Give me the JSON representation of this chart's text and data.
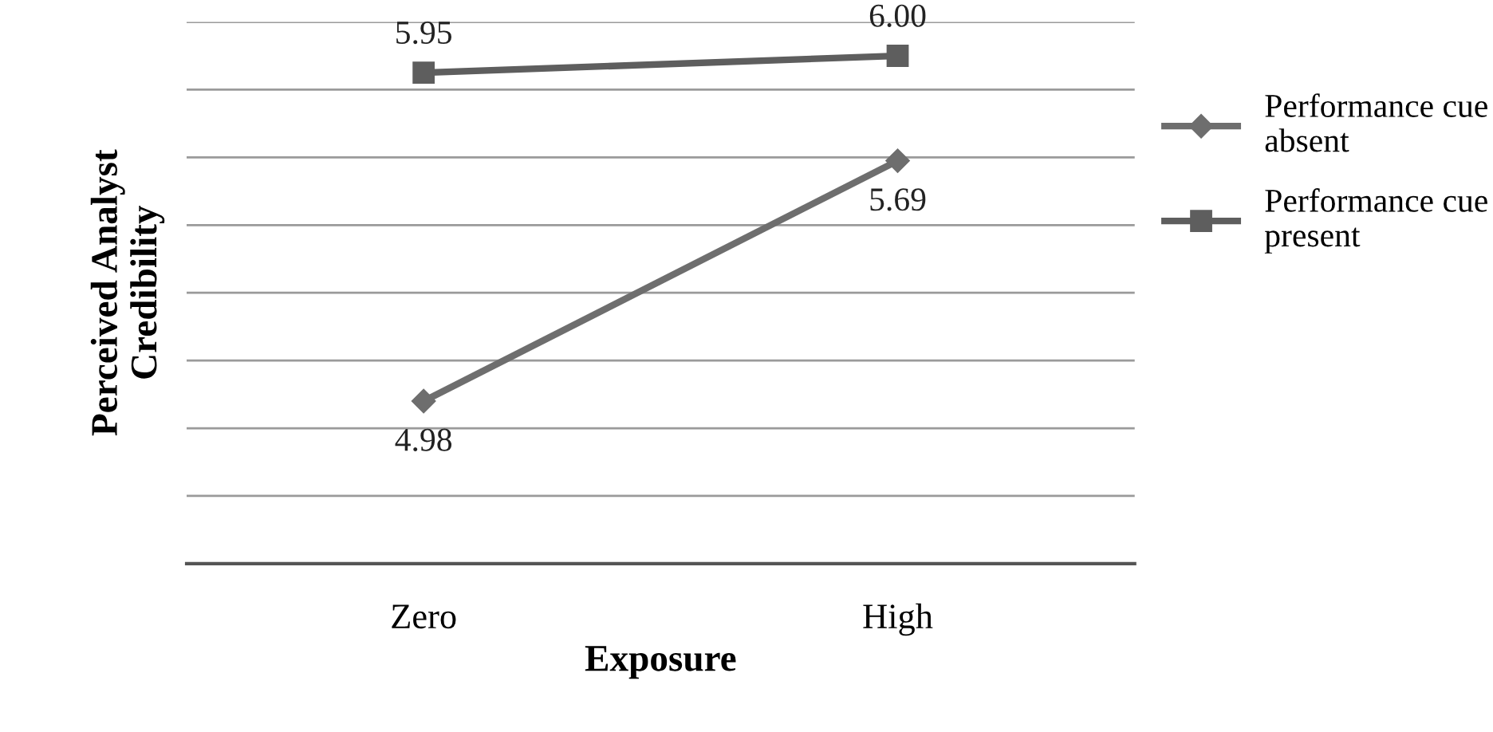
{
  "chart_data": {
    "type": "line",
    "xlabel": "Exposure",
    "ylabel": "Perceived Analyst\nCredibility",
    "categories": [
      "Zero",
      "High"
    ],
    "series": [
      {
        "name": "Performance cue absent",
        "color": "#6e6e6e",
        "marker": "diamond",
        "values": [
          4.98,
          5.69
        ],
        "value_labels": [
          "4.98",
          "5.69"
        ]
      },
      {
        "name": "Performance cue present",
        "color": "#5e5e5e",
        "marker": "square",
        "values": [
          5.95,
          6.0
        ],
        "value_labels": [
          "5.95",
          "6.00"
        ]
      }
    ],
    "ylim": [
      4.5,
      6.1
    ],
    "yticks": [
      {
        "value": 4.5,
        "label": null
      },
      {
        "value": 4.7,
        "label": null
      },
      {
        "value": 4.9,
        "label": null
      },
      {
        "value": 5.1,
        "label": null
      },
      {
        "value": 5.3,
        "label": null
      },
      {
        "value": 5.5,
        "label": null
      },
      {
        "value": 5.7,
        "label": null
      },
      {
        "value": 5.9,
        "label": null
      },
      {
        "value": 6.1,
        "label": null
      }
    ],
    "grid": "y",
    "legend": "right",
    "tick_labels": "x",
    "line_style": "solid"
  }
}
